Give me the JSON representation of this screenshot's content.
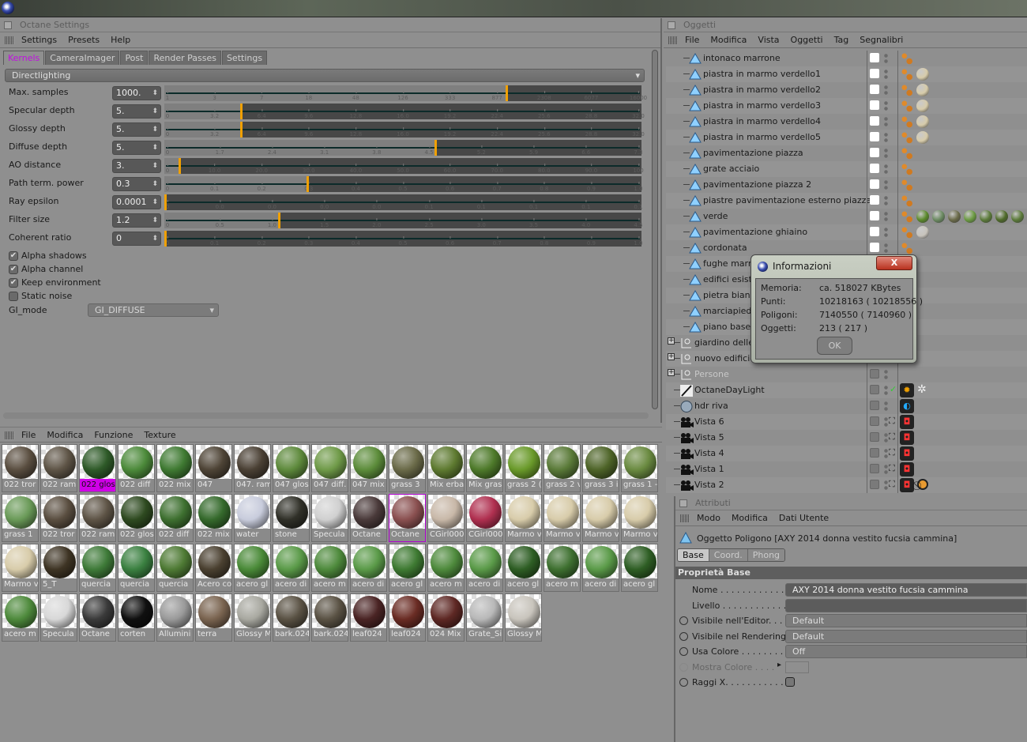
{
  "app": {
    "icon": "cinema4d-logo-icon"
  },
  "octane": {
    "title": "Octane Settings",
    "menu": [
      "Settings",
      "Presets",
      "Help"
    ],
    "tabs": [
      {
        "label": "Kernels",
        "active": true
      },
      {
        "label": "CameraImager"
      },
      {
        "label": "Post"
      },
      {
        "label": "Render Passes"
      },
      {
        "label": "Settings"
      }
    ],
    "kernel_dropdown": "Directlighting",
    "params": [
      {
        "label": "Max. samples",
        "value": "1000.",
        "level": 0.72,
        "ticks": [
          "1",
          "3",
          "7",
          "18",
          "48",
          "126",
          "333",
          "877",
          "2308",
          "6077",
          "16000"
        ]
      },
      {
        "label": "Specular depth",
        "value": "5.",
        "level": 0.16,
        "ticks": [
          "0",
          "3.2",
          "6.4",
          "9.6",
          "12.8",
          "16.0",
          "19.2",
          "22.4",
          "25.6",
          "28.8",
          "32.0"
        ]
      },
      {
        "label": "Glossy depth",
        "value": "5.",
        "level": 0.16,
        "ticks": [
          "0",
          "3.2",
          "6.4",
          "9.6",
          "12.8",
          "16.0",
          "19.2",
          "22.4",
          "25.6",
          "28.8",
          "32.0"
        ]
      },
      {
        "label": "Diffuse depth",
        "value": "5.",
        "level": 0.57,
        "ticks": [
          "0",
          "1.7",
          "2.4",
          "3.1",
          "3.8",
          "4.5",
          "5.2",
          "5.9",
          "6.6",
          "7.3"
        ]
      },
      {
        "label": "AO distance",
        "value": "3.",
        "level": 0.03,
        "ticks": [
          "0",
          "10.0",
          "20.0",
          "30.0",
          "40.0",
          "50.0",
          "60.0",
          "70.0",
          "80.0",
          "90.0",
          "100"
        ]
      },
      {
        "label": "Path term. power",
        "value": "0.3",
        "level": 0.3,
        "ticks": [
          "0",
          "0.1",
          "0.2",
          "0.3",
          "0.4",
          "0.5",
          "0.6",
          "0.7",
          "0.8",
          "0.9",
          "1.0"
        ]
      },
      {
        "label": "Ray epsilon",
        "value": "0.0001",
        "level": 0.0,
        "ticks": [
          "0",
          "0.0",
          "0.0",
          "0.0",
          "0.0",
          "0.1",
          "0.1",
          "0.1",
          "0.1",
          "0.1"
        ]
      },
      {
        "label": "Filter size",
        "value": "1.2",
        "level": 0.24,
        "ticks": [
          "0",
          "0.5",
          "1.0",
          "1.5",
          "2.0",
          "2.5",
          "3.0",
          "3.5",
          "4.0",
          "4.5"
        ]
      },
      {
        "label": "Coherent ratio",
        "value": "0",
        "level": 0.0,
        "ticks": [
          "0",
          "0.1",
          "0.2",
          "0.3",
          "0.4",
          "0.5",
          "0.6",
          "0.7",
          "0.8",
          "0.9",
          "1.0"
        ]
      }
    ],
    "checkboxes": [
      {
        "label": "Alpha shadows",
        "checked": true
      },
      {
        "label": "Alpha channel",
        "checked": true
      },
      {
        "label": "Keep environment",
        "checked": true
      },
      {
        "label": "Static noise",
        "checked": false
      }
    ],
    "gi_mode": {
      "label": "GI_mode",
      "value": "GI_DIFFUSE"
    },
    "accent": "#f0a000"
  },
  "materials": {
    "menu": [
      "File",
      "Modifica",
      "Funzione",
      "Texture"
    ],
    "rows": [
      [
        [
          "022 tror",
          "#5a4e40"
        ],
        [
          "022 ram",
          "#5e5446"
        ],
        [
          "022 glos",
          "#2e5a28",
          "sel"
        ],
        [
          "022 diff",
          "#4c8a3a"
        ],
        [
          "022 mix",
          "#3f7a32"
        ],
        [
          "047",
          "#4e4436"
        ],
        [
          "047. ram",
          "#4a4034"
        ],
        [
          "047 glos",
          "#5e8a3c"
        ],
        [
          "047 diff.",
          "#6f9a48"
        ],
        [
          "047 mix",
          "#5c8c3a"
        ],
        [
          "grass 3",
          "#6a6a48"
        ],
        [
          "Mix erba",
          "#5e7a30"
        ],
        [
          "Mix gras",
          "#4e7a2a"
        ],
        [
          "grass 2 (",
          "#6a9a2a"
        ],
        [
          "grass 2 v",
          "#5a7a38"
        ],
        [
          "grass 3 i",
          "#4e6428"
        ],
        [
          "grass 1 -",
          "#6a8a40"
        ]
      ],
      [
        [
          "grass 1",
          "#6a9a58"
        ],
        [
          "022 tror",
          "#5a4e40"
        ],
        [
          "022 ram",
          "#5e5446"
        ],
        [
          "022 glos",
          "#2e4a20"
        ],
        [
          "022 diff",
          "#3e7030"
        ],
        [
          "022 mix",
          "#356a2c"
        ],
        [
          "water",
          "#c8ccdc"
        ],
        [
          "stone",
          "#303028"
        ],
        [
          "Specula",
          "#d0d0d0"
        ],
        [
          "Octane",
          "#4a3a3a"
        ],
        [
          "Octane",
          "#8a5050",
          "hl"
        ],
        [
          "CGirl000",
          "#c8b8a8"
        ],
        [
          "CGirl000",
          "#b03050"
        ],
        [
          "Marmo v",
          "#d8ccaa"
        ],
        [
          "Marmo v",
          "#d8ccaa"
        ],
        [
          "Marmo v",
          "#d8ccaa"
        ],
        [
          "Marmo v",
          "#d8ccaa"
        ]
      ],
      [
        [
          "Marmo v",
          "#d8ccaa"
        ],
        [
          "5_T",
          "#3e3424"
        ],
        [
          "quercia",
          "#3e7a38"
        ],
        [
          "quercia",
          "#3a8040"
        ],
        [
          "quercia",
          "#4e7a34"
        ],
        [
          "Acero co",
          "#4a4030"
        ],
        [
          "acero gl",
          "#4a8a38"
        ],
        [
          "acero di",
          "#5a9a48"
        ],
        [
          "acero m",
          "#4e8a3c"
        ],
        [
          "acero di",
          "#5a9a48"
        ],
        [
          "acero gl",
          "#3e7a32"
        ],
        [
          "acero m",
          "#4e8a3c"
        ],
        [
          "acero di",
          "#5a9a48"
        ],
        [
          "acero gl",
          "#2e5e24"
        ],
        [
          "acero m",
          "#3e7030"
        ],
        [
          "acero di",
          "#5a9a48"
        ],
        [
          "acero gl",
          "#2e5e24"
        ]
      ],
      [
        [
          "acero m",
          "#4e8a3c"
        ],
        [
          "Specula",
          "#d8d8d8"
        ],
        [
          "Octane",
          "#3a3a3a"
        ],
        [
          "corten",
          "#101010"
        ],
        [
          "Allumini",
          "#9a9a9a"
        ],
        [
          "terra",
          "#7a6450"
        ],
        [
          "Glossy M",
          "#a8a8a0"
        ],
        [
          "bark.024",
          "#5a5244"
        ],
        [
          "bark.024",
          "#5a5244"
        ],
        [
          "leaf024",
          "#4a2424"
        ],
        [
          "leaf024",
          "#6a2c24"
        ],
        [
          "024 Mix",
          "#5e2824"
        ],
        [
          "Grate_Si",
          "#b8b8b8"
        ],
        [
          "Glossy M",
          "#c8c4bc"
        ]
      ]
    ]
  },
  "objects": {
    "title": "Oggetti",
    "menu": [
      "File",
      "Modifica",
      "Vista",
      "Oggetti",
      "Tag",
      "Segnalibri"
    ],
    "items": [
      {
        "name": "intonaco marrone",
        "type": "polygon",
        "tags": []
      },
      {
        "name": "piastra in marmo verdello1",
        "type": "polygon",
        "tags": [
          "#d8ccaa"
        ]
      },
      {
        "name": "piastra in marmo verdello2",
        "type": "polygon",
        "tags": [
          "#d8ccaa"
        ]
      },
      {
        "name": "piastra in marmo verdello3",
        "type": "polygon",
        "tags": [
          "#d8ccaa"
        ]
      },
      {
        "name": "piastra in marmo verdello4",
        "type": "polygon",
        "tags": [
          "#d8ccaa"
        ]
      },
      {
        "name": "piastra in marmo verdello5",
        "type": "polygon",
        "tags": [
          "#d8ccaa"
        ]
      },
      {
        "name": "pavimentazione piazza",
        "type": "polygon",
        "tags": []
      },
      {
        "name": "grate acciaio",
        "type": "polygon",
        "tags": []
      },
      {
        "name": "pavimentazione piazza 2",
        "type": "polygon",
        "tags": []
      },
      {
        "name": "piastre pavimentazione esterno piazza",
        "type": "polygon",
        "tags": []
      },
      {
        "name": "verde",
        "type": "polygon",
        "tags": [
          "#5a8a2a",
          "#6a8a60",
          "#6a6a48",
          "#6a9a40",
          "#5a7a38",
          "#4e6a28",
          "#5a7a38"
        ]
      },
      {
        "name": "pavimentazione ghiaino",
        "type": "polygon",
        "tags": [
          "#c8c4bc"
        ]
      },
      {
        "name": "cordonata",
        "type": "polygon",
        "tags": []
      },
      {
        "name": "fughe marmo",
        "type": "polygon",
        "tags": []
      },
      {
        "name": "edifici esistenti",
        "type": "polygon",
        "tags": []
      },
      {
        "name": "pietra bianca",
        "type": "polygon",
        "tags": []
      },
      {
        "name": "marciapiede",
        "type": "polygon",
        "tags": []
      },
      {
        "name": "piano base",
        "type": "polygon",
        "tags": []
      },
      {
        "name": "giardino delle",
        "type": "null"
      },
      {
        "name": "nuovo edificio",
        "type": "null"
      },
      {
        "name": "Persone",
        "type": "null",
        "dim": true
      },
      {
        "name": "OctaneDayLight",
        "type": "light",
        "special": "sun"
      },
      {
        "name": "hdr riva",
        "type": "sky",
        "special": "env"
      },
      {
        "name": "Vista 6",
        "type": "camera",
        "special": "cam"
      },
      {
        "name": "Vista 5",
        "type": "camera",
        "special": "cam"
      },
      {
        "name": "Vista 4",
        "type": "camera",
        "special": "cam"
      },
      {
        "name": "Vista 1",
        "type": "camera",
        "special": "cam"
      },
      {
        "name": "Vista 2",
        "type": "camera",
        "special": "cam2"
      }
    ]
  },
  "info_dialog": {
    "title": "Informazioni",
    "close": "X",
    "rows": [
      {
        "label": "Memoria:",
        "value": "ca. 518027 KBytes"
      },
      {
        "label": "Punti:",
        "value": "10218163 ( 10218556 )"
      },
      {
        "label": "Poligoni:",
        "value": "7140550 ( 7140960 )"
      },
      {
        "label": "Oggetti:",
        "value": "213 ( 217 )"
      }
    ],
    "ok": "OK"
  },
  "attributes": {
    "title": "Attributi",
    "menu": [
      "Modo",
      "Modifica",
      "Dati Utente"
    ],
    "object_title": "Oggetto Poligono [AXY 2014 donna vestito fucsia cammina]",
    "tabs": [
      "Base",
      "Coord.",
      "Phong"
    ],
    "section": "Proprietà Base",
    "fields": [
      {
        "label": "Nome . . . . . . . . . . . . . . .",
        "value": "AXY 2014 donna vestito fucsia cammina",
        "kind": "text"
      },
      {
        "label": "Livello . . . . . . . . . . . . . .",
        "value": "",
        "kind": "text"
      },
      {
        "label": "Visibile nell'Editor. . . .",
        "value": "Default",
        "kind": "select",
        "radio": true
      },
      {
        "label": "Visibile nel Rendering",
        "value": "Default",
        "kind": "select",
        "radio": true
      },
      {
        "label": "Usa Colore . . . . . . . . . .",
        "value": "Off",
        "kind": "select",
        "radio": true
      },
      {
        "label": "Mostra Colore . . . .",
        "value": "",
        "kind": "color",
        "radio": true,
        "dim": true
      },
      {
        "label": "Raggi X. . . . . . . . . . . .",
        "value": "",
        "kind": "check",
        "radio": true
      }
    ]
  }
}
